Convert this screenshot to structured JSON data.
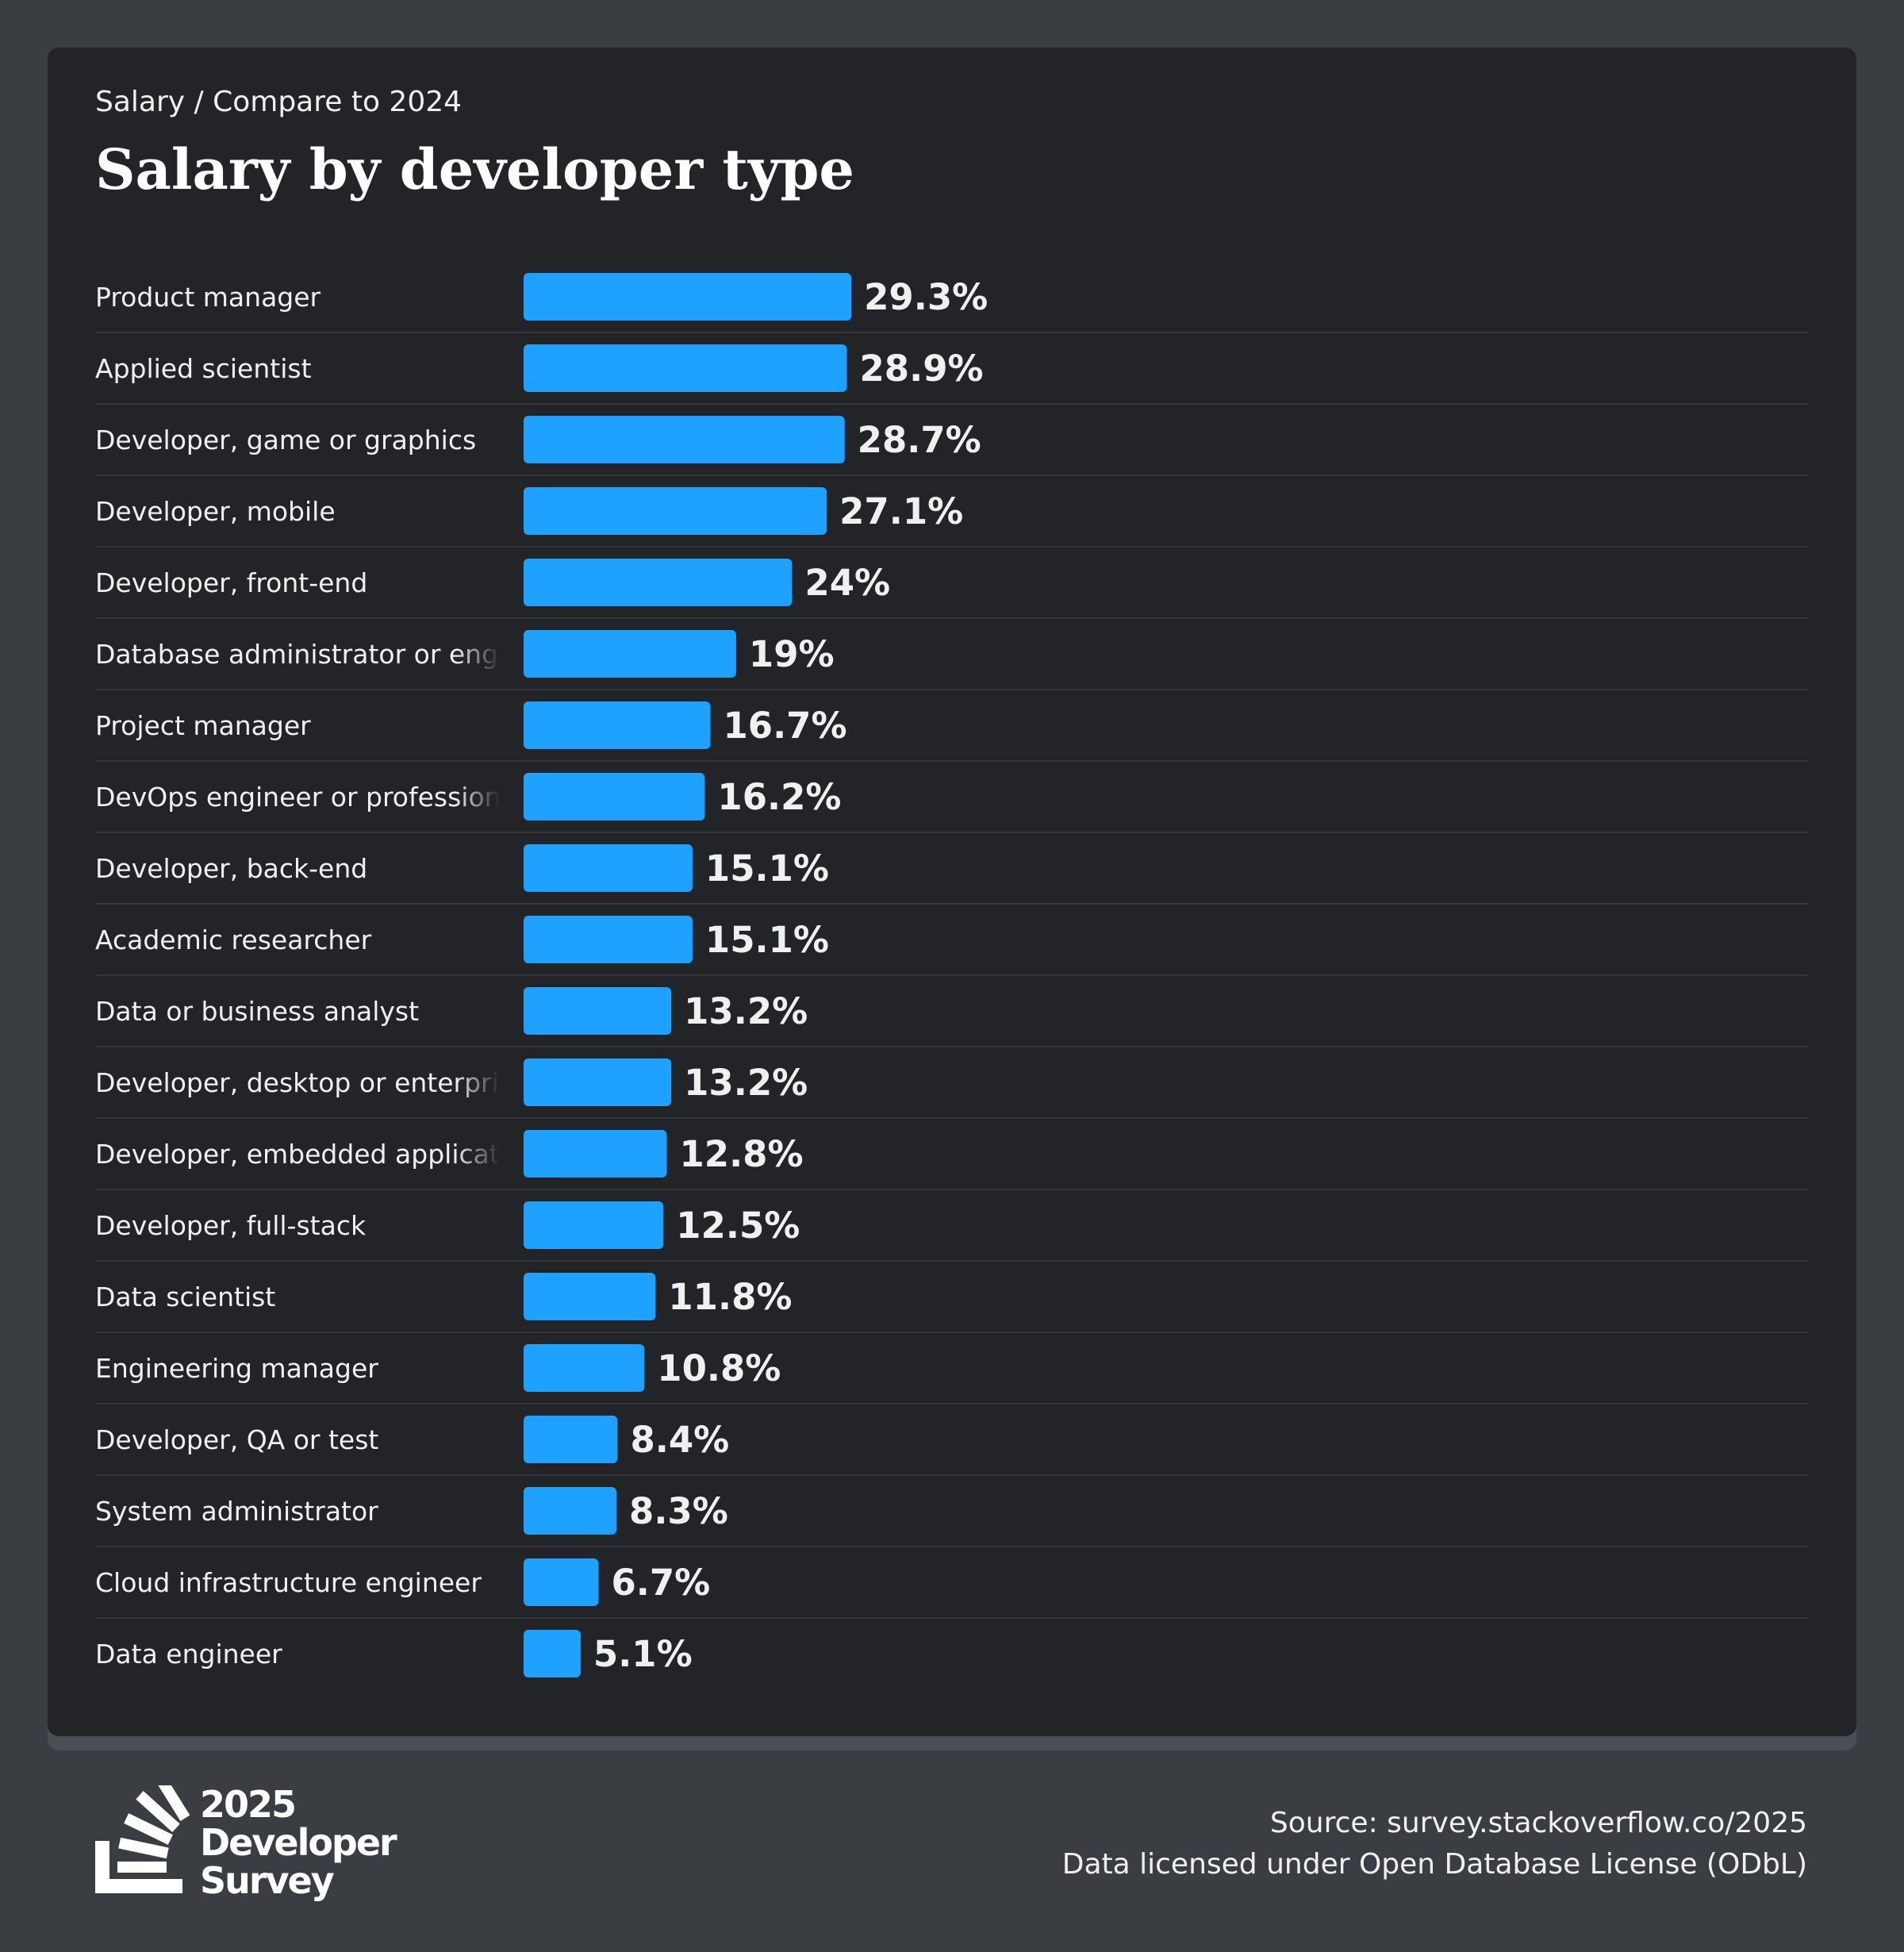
{
  "header": {
    "breadcrumb": "Salary / Compare to 2024",
    "title": "Salary by developer type"
  },
  "colors": {
    "bar": "#1ea1ff",
    "card_background": "#222427",
    "page_background": "#3a3e43",
    "row_divider": "#33363a",
    "label_text": "#f0f0f0",
    "value_text": "#f0f0f0"
  },
  "chart_data": {
    "type": "bar",
    "orientation": "horizontal",
    "title": "Salary by developer type",
    "categories": [
      "Product manager",
      "Applied scientist",
      "Developer, game or graphics",
      "Developer, mobile",
      "Developer, front-end",
      "Database administrator or engineer",
      "Project manager",
      "DevOps engineer or professional",
      "Developer, back-end",
      "Academic researcher",
      "Data or business analyst",
      "Developer, desktop or enterprise applications",
      "Developer, embedded applications or devices",
      "Developer, full-stack",
      "Data scientist",
      "Engineering manager",
      "Developer, QA or test",
      "System administrator",
      "Cloud infrastructure engineer",
      "Data engineer"
    ],
    "values": [
      29.3,
      28.9,
      28.7,
      27.1,
      24,
      19,
      16.7,
      16.2,
      15.1,
      15.1,
      13.2,
      13.2,
      12.8,
      12.5,
      11.8,
      10.8,
      8.4,
      8.3,
      6.7,
      5.1
    ],
    "value_labels": [
      "29.3%",
      "28.9%",
      "28.7%",
      "27.1%",
      "24%",
      "19%",
      "16.7%",
      "16.2%",
      "15.1%",
      "15.1%",
      "13.2%",
      "13.2%",
      "12.8%",
      "12.5%",
      "11.8%",
      "10.8%",
      "8.4%",
      "8.3%",
      "6.7%",
      "5.1%"
    ],
    "unit": "%",
    "xlim": [
      0,
      100
    ],
    "grid": false,
    "legend": "none"
  },
  "footer": {
    "logo_line1": "2025",
    "logo_line2": "Developer",
    "logo_line3": "Survey",
    "source": "Source: survey.stackoverflow.co/2025",
    "license": "Data licensed under Open Database License (ODbL)"
  }
}
